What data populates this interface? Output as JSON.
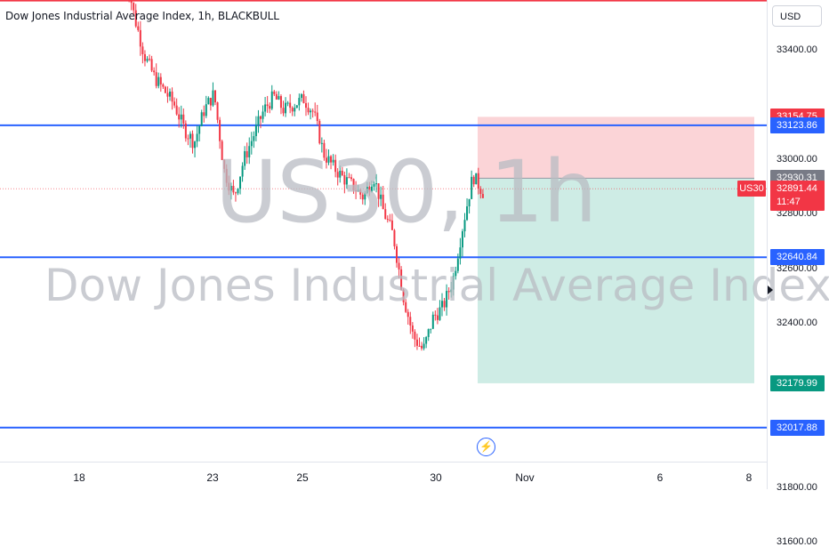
{
  "header": {
    "title": "Dow Jones Industrial Average Index, 1h, BLACKBULL",
    "currency": "USD"
  },
  "watermark": {
    "symbol": "US30, 1h",
    "name": "Dow Jones Industrial Average Index"
  },
  "colors": {
    "up": "#089981",
    "down": "#f23645",
    "level": "#2962ff",
    "resistance": "#f23645",
    "stop_zone": "#f7a9b0",
    "target_zone": "#9ed9cb"
  },
  "chart_data": {
    "type": "candlestick",
    "title": "Dow Jones Industrial Average Index, 1h, BLACKBULL",
    "x_ticks": [
      "18",
      "23",
      "25",
      "30",
      "Nov",
      "6",
      "8"
    ],
    "y_ticks": [
      "33400.00",
      "33000.00",
      "32800.00",
      "32600.00",
      "32400.00",
      "31800.00",
      "31600.00"
    ],
    "ylim": [
      31600,
      33600
    ],
    "horizontal_levels": [
      {
        "value": 33580,
        "color": "red"
      },
      {
        "value": 33123.86,
        "color": "blue"
      },
      {
        "value": 32640.84,
        "color": "blue"
      },
      {
        "value": 32017.88,
        "color": "blue"
      }
    ],
    "position": {
      "side": "short",
      "entry": 32930.31,
      "stop": 33154.75,
      "target": 32179.99
    },
    "last_price": 32891.44,
    "price_labels": [
      {
        "text": "33154.75",
        "value": 33154.75,
        "kind": "stop"
      },
      {
        "text": "33123.86",
        "value": 33123.86,
        "kind": "level"
      },
      {
        "text": "32930.31",
        "value": 32930.31,
        "kind": "entry"
      },
      {
        "text": "32640.84",
        "value": 32640.84,
        "kind": "level"
      },
      {
        "text": "32179.99",
        "value": 32179.99,
        "kind": "target"
      },
      {
        "text": "32017.88",
        "value": 32017.88,
        "kind": "level"
      }
    ],
    "symbol_tag": "US30",
    "last_price_label": "32891.44",
    "countdown": "11:47",
    "path": [
      33700,
      33520,
      33380,
      33300,
      33250,
      33200,
      33110,
      33060,
      33180,
      33240,
      32960,
      32860,
      33000,
      33090,
      33180,
      33230,
      33180,
      33200,
      33220,
      33170,
      33020,
      32970,
      32930,
      32900,
      32860,
      32940,
      32810,
      32720,
      32500,
      32350,
      32300,
      32420,
      32460,
      32560,
      32760,
      32940,
      32880
    ]
  }
}
